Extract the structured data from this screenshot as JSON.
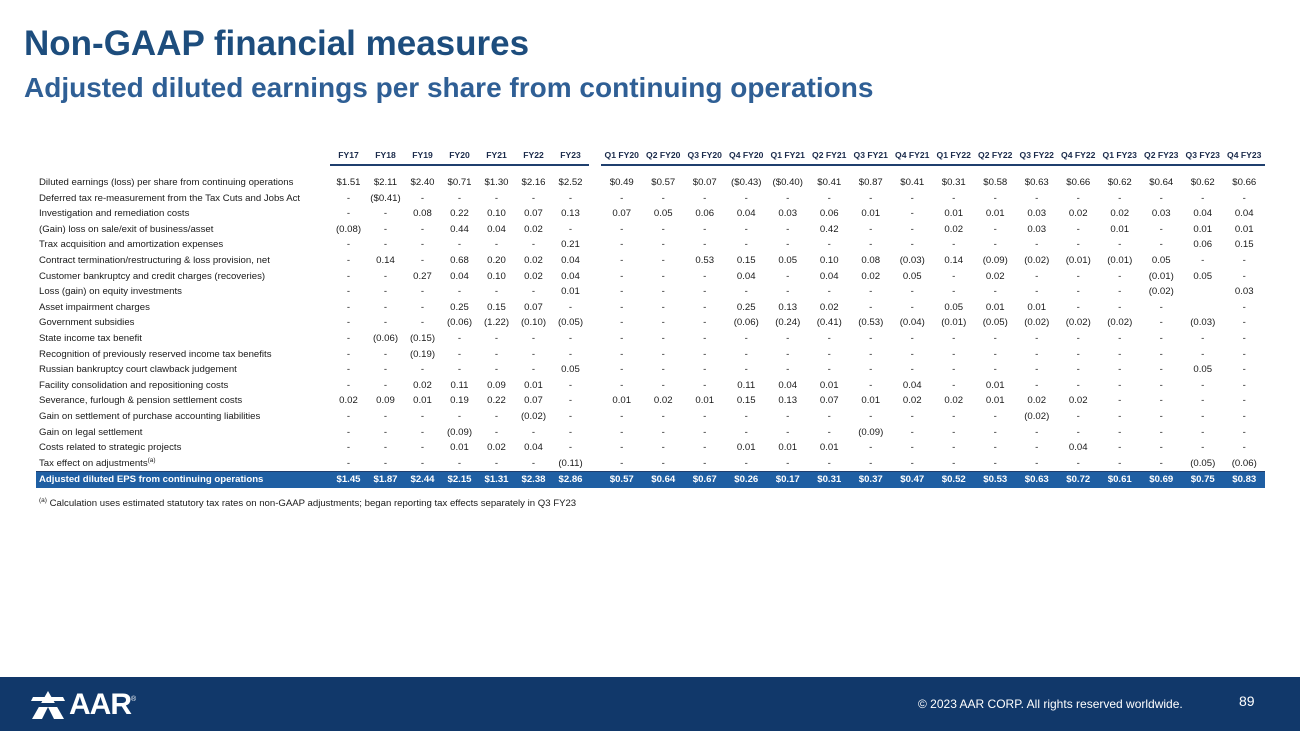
{
  "slide": {
    "title": "Non-GAAP financial measures",
    "subtitle": "Adjusted diluted earnings per share from continuing operations"
  },
  "table": {
    "annual_headers": [
      "FY17",
      "FY18",
      "FY19",
      "FY20",
      "FY21",
      "FY22",
      "FY23"
    ],
    "quarter_headers": [
      "Q1 FY20",
      "Q2 FY20",
      "Q3 FY20",
      "Q4 FY20",
      "Q1 FY21",
      "Q2 FY21",
      "Q3 FY21",
      "Q4 FY21",
      "Q1 FY22",
      "Q2 FY22",
      "Q3 FY22",
      "Q4 FY22",
      "Q1 FY23",
      "Q2 FY23",
      "Q3 FY23",
      "Q4 FY23"
    ],
    "rows": [
      {
        "label": "Diluted earnings (loss) per share from continuing operations",
        "values": [
          "$1.51",
          "$2.11",
          "$2.40",
          "$0.71",
          "$1.30",
          "$2.16",
          "$2.52",
          "$0.49",
          "$0.57",
          "$0.07",
          "($0.43)",
          "($0.40)",
          "$0.41",
          "$0.87",
          "$0.41",
          "$0.31",
          "$0.58",
          "$0.63",
          "$0.66",
          "$0.62",
          "$0.64",
          "$0.62",
          "$0.66"
        ]
      },
      {
        "label": "Deferred tax re-measurement from the Tax Cuts and Jobs Act",
        "values": [
          "-",
          "($0.41)",
          "-",
          "-",
          "-",
          "-",
          "-",
          "-",
          "-",
          "-",
          "-",
          "-",
          "-",
          "-",
          "-",
          "-",
          "-",
          "-",
          "-",
          "-",
          "-",
          "-",
          "-"
        ]
      },
      {
        "label": "Investigation and remediation costs",
        "values": [
          "-",
          "-",
          "0.08",
          "0.22",
          "0.10",
          "0.07",
          "0.13",
          "0.07",
          "0.05",
          "0.06",
          "0.04",
          "0.03",
          "0.06",
          "0.01",
          "-",
          "0.01",
          "0.01",
          "0.03",
          "0.02",
          "0.02",
          "0.03",
          "0.04",
          "0.04"
        ]
      },
      {
        "label": "(Gain) loss on sale/exit of business/asset",
        "values": [
          "(0.08)",
          "-",
          "-",
          "0.44",
          "0.04",
          "0.02",
          "-",
          "-",
          "-",
          "-",
          "-",
          "-",
          "0.42",
          "-",
          "-",
          "0.02",
          "-",
          "0.03",
          "-",
          "0.01",
          "-",
          "0.01",
          "0.01"
        ]
      },
      {
        "label": "Trax acquisition and amortization expenses",
        "values": [
          "-",
          "-",
          "-",
          "-",
          "-",
          "-",
          "0.21",
          "-",
          "-",
          "-",
          "-",
          "-",
          "-",
          "-",
          "-",
          "-",
          "-",
          "-",
          "-",
          "-",
          "-",
          "0.06",
          "0.15"
        ]
      },
      {
        "label": "Contract termination/restructuring & loss provision, net",
        "values": [
          "-",
          "0.14",
          "-",
          "0.68",
          "0.20",
          "0.02",
          "0.04",
          "-",
          "-",
          "0.53",
          "0.15",
          "0.05",
          "0.10",
          "0.08",
          "(0.03)",
          "0.14",
          "(0.09)",
          "(0.02)",
          "(0.01)",
          "(0.01)",
          "0.05",
          "-",
          "-"
        ]
      },
      {
        "label": "Customer bankruptcy and credit charges (recoveries)",
        "values": [
          "-",
          "-",
          "0.27",
          "0.04",
          "0.10",
          "0.02",
          "0.04",
          "-",
          "-",
          "-",
          "0.04",
          "-",
          "0.04",
          "0.02",
          "0.05",
          "-",
          "0.02",
          "-",
          "-",
          "-",
          "(0.01)",
          "0.05",
          "-"
        ]
      },
      {
        "label": "Loss (gain) on equity investments",
        "values": [
          "-",
          "-",
          "-",
          "-",
          "-",
          "-",
          "0.01",
          "-",
          "-",
          "-",
          "-",
          "-",
          "-",
          "-",
          "-",
          "-",
          "-",
          "-",
          "-",
          "-",
          "(0.02)",
          "",
          "0.03"
        ]
      },
      {
        "label": "Asset impairment charges",
        "values": [
          "-",
          "-",
          "-",
          "0.25",
          "0.15",
          "0.07",
          "-",
          "-",
          "-",
          "-",
          "0.25",
          "0.13",
          "0.02",
          "-",
          "-",
          "0.05",
          "0.01",
          "0.01",
          "-",
          "-",
          "-",
          "",
          "-"
        ]
      },
      {
        "label": "Government subsidies",
        "values": [
          "-",
          "-",
          "-",
          "(0.06)",
          "(1.22)",
          "(0.10)",
          "(0.05)",
          "-",
          "-",
          "-",
          "(0.06)",
          "(0.24)",
          "(0.41)",
          "(0.53)",
          "(0.04)",
          "(0.01)",
          "(0.05)",
          "(0.02)",
          "(0.02)",
          "(0.02)",
          "-",
          "(0.03)",
          "-"
        ]
      },
      {
        "label": "State income tax benefit",
        "values": [
          "-",
          "(0.06)",
          "(0.15)",
          "-",
          "-",
          "-",
          "-",
          "-",
          "-",
          "-",
          "-",
          "-",
          "-",
          "-",
          "-",
          "-",
          "-",
          "-",
          "-",
          "-",
          "-",
          "-",
          "-"
        ]
      },
      {
        "label": "Recognition of previously reserved income tax benefits",
        "values": [
          "-",
          "-",
          "(0.19)",
          "-",
          "-",
          "-",
          "-",
          "-",
          "-",
          "-",
          "-",
          "-",
          "-",
          "-",
          "-",
          "-",
          "-",
          "-",
          "-",
          "-",
          "-",
          "-",
          "-"
        ]
      },
      {
        "label": "Russian bankruptcy court clawback judgement",
        "values": [
          "-",
          "-",
          "-",
          "-",
          "-",
          "-",
          "0.05",
          "-",
          "-",
          "-",
          "-",
          "-",
          "-",
          "-",
          "-",
          "-",
          "-",
          "-",
          "-",
          "-",
          "-",
          "0.05",
          "-"
        ]
      },
      {
        "label": "Facility consolidation and repositioning costs",
        "values": [
          "-",
          "-",
          "0.02",
          "0.11",
          "0.09",
          "0.01",
          "-",
          "-",
          "-",
          "-",
          "0.11",
          "0.04",
          "0.01",
          "-",
          "0.04",
          "-",
          "0.01",
          "-",
          "-",
          "-",
          "-",
          "-",
          "-"
        ]
      },
      {
        "label": "Severance, furlough & pension settlement costs",
        "values": [
          "0.02",
          "0.09",
          "0.01",
          "0.19",
          "0.22",
          "0.07",
          "-",
          "0.01",
          "0.02",
          "0.01",
          "0.15",
          "0.13",
          "0.07",
          "0.01",
          "0.02",
          "0.02",
          "0.01",
          "0.02",
          "0.02",
          "-",
          "-",
          "-",
          "-"
        ]
      },
      {
        "label": "Gain on settlement of purchase accounting liabilities",
        "values": [
          "-",
          "-",
          "-",
          "-",
          "-",
          "(0.02)",
          "-",
          "-",
          "-",
          "-",
          "-",
          "-",
          "-",
          "-",
          "-",
          "-",
          "-",
          "(0.02)",
          "-",
          "-",
          "-",
          "-",
          "-"
        ]
      },
      {
        "label": "Gain on legal settlement",
        "values": [
          "-",
          "-",
          "-",
          "(0.09)",
          "-",
          "-",
          "-",
          "-",
          "-",
          "-",
          "-",
          "-",
          "-",
          "(0.09)",
          "-",
          "-",
          "-",
          "-",
          "-",
          "-",
          "-",
          "-",
          "-"
        ]
      },
      {
        "label": "Costs related to strategic projects",
        "values": [
          "-",
          "-",
          "-",
          "0.01",
          "0.02",
          "0.04",
          "-",
          "-",
          "-",
          "-",
          "0.01",
          "0.01",
          "0.01",
          "-",
          "-",
          "-",
          "-",
          "-",
          "0.04",
          "-",
          "-",
          "-",
          "-"
        ]
      },
      {
        "label": "Tax effect on adjustments",
        "sup": "(a)",
        "values": [
          "-",
          "-",
          "-",
          "-",
          "-",
          "-",
          "(0.11)",
          "-",
          "-",
          "-",
          "-",
          "-",
          "-",
          "-",
          "-",
          "-",
          "-",
          "-",
          "-",
          "-",
          "-",
          "(0.05)",
          "(0.06)"
        ]
      }
    ],
    "total": {
      "label": "Adjusted diluted EPS from continuing operations",
      "values": [
        "$1.45",
        "$1.87",
        "$2.44",
        "$2.15",
        "$1.31",
        "$2.38",
        "$2.86",
        "$0.57",
        "$0.64",
        "$0.67",
        "$0.26",
        "$0.17",
        "$0.31",
        "$0.37",
        "$0.47",
        "$0.52",
        "$0.53",
        "$0.63",
        "$0.72",
        "$0.61",
        "$0.69",
        "$0.75",
        "$0.83"
      ]
    }
  },
  "footnote": {
    "marker": "(a)",
    "text": "Calculation uses estimated statutory tax rates on non-GAAP adjustments; began reporting tax effects separately in Q3 FY23"
  },
  "footer": {
    "logo_text": "AAR",
    "logo_mark": "®",
    "copyright": "© 2023 AAR CORP. All rights reserved worldwide.",
    "page_number": "89"
  },
  "colors": {
    "title": "#1d4d7d",
    "subtitle": "#2f5f95",
    "total_row": "#1f5fa3",
    "footer": "#11386a"
  },
  "icons": {
    "logo": "aar-logo-icon"
  }
}
